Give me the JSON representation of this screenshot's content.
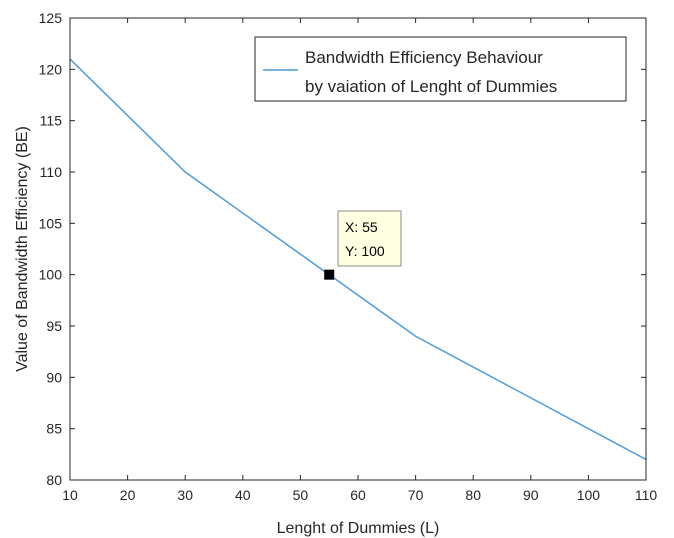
{
  "chart_data": {
    "type": "line",
    "title": "",
    "xlabel": "Lenght of Dummies (L)",
    "ylabel": "Value of Bandwidth Efficiency (BE)",
    "xlim": [
      10,
      110
    ],
    "ylim": [
      80,
      125
    ],
    "xticks": [
      10,
      20,
      30,
      40,
      50,
      60,
      70,
      80,
      90,
      100,
      110
    ],
    "yticks": [
      80,
      85,
      90,
      95,
      100,
      105,
      110,
      115,
      120,
      125
    ],
    "grid": false,
    "legend_position": "top-right",
    "series": [
      {
        "name": [
          "Bandwidth Efficiency Behaviour",
          "by vaiation of Lenght of Dummies"
        ],
        "color": "#4f9bd6",
        "x": [
          10,
          30,
          50,
          70,
          90,
          110
        ],
        "y": [
          121,
          110,
          102,
          94,
          88,
          82
        ]
      }
    ],
    "datatip": {
      "x": 55,
      "y": 100,
      "x_text": "X: 55",
      "y_text": "Y: 100"
    }
  }
}
